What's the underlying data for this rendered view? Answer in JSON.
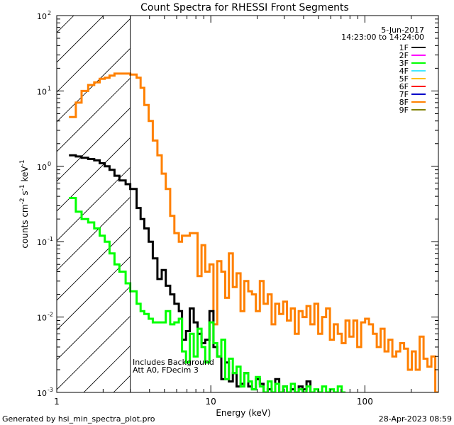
{
  "chart_data": {
    "type": "line",
    "title": "Count Spectra for RHESSI Front Segments",
    "xlabel": "Energy (keV)",
    "ylabel_prefix": "counts cm",
    "ylabel_exps": [
      "-2",
      "-1",
      "-1"
    ],
    "ylabel_parts": [
      " s",
      " keV"
    ],
    "x_scale": "log",
    "y_scale": "log",
    "xlim": [
      1.0,
      300.0
    ],
    "ylim": [
      0.001,
      100.0
    ],
    "x_ticks": [
      {
        "value": 1,
        "label": "1"
      },
      {
        "value": 10,
        "label": "10"
      },
      {
        "value": 100,
        "label": "100"
      }
    ],
    "y_ticks": [
      {
        "value": 0.001,
        "base": "10",
        "exp": "-3"
      },
      {
        "value": 0.01,
        "base": "10",
        "exp": "-2"
      },
      {
        "value": 0.1,
        "base": "10",
        "exp": "-1"
      },
      {
        "value": 1,
        "base": "10",
        "exp": "0"
      },
      {
        "value": 10,
        "base": "10",
        "exp": "1"
      },
      {
        "value": 100,
        "base": "10",
        "exp": "2"
      }
    ],
    "date_label": "5-Jun-2017",
    "time_label": "14:23:00 to 14:24:00",
    "attenuator_cutoff_kev": 3.0,
    "annotations": [
      "Includes Background",
      "Att A0, FDecim 3"
    ],
    "footer_left": "Generated by hsi_min_spectra_plot.pro",
    "footer_right": "28-Apr-2023 08:59",
    "legend": [
      {
        "name": "1F",
        "color": "#000000"
      },
      {
        "name": "2F",
        "color": "#ff00ff"
      },
      {
        "name": "3F",
        "color": "#00ff00"
      },
      {
        "name": "4F",
        "color": "#44e8ff"
      },
      {
        "name": "5F",
        "color": "#ffc000"
      },
      {
        "name": "6F",
        "color": "#ff0000"
      },
      {
        "name": "7F",
        "color": "#0000c8"
      },
      {
        "name": "8F",
        "color": "#ff8000"
      },
      {
        "name": "9F",
        "color": "#808000"
      }
    ],
    "series": [
      {
        "name": "8F",
        "color": "#ff8000",
        "edges": [
          1.2,
          1.33,
          1.45,
          1.6,
          1.75,
          1.9,
          2.05,
          2.2,
          2.37,
          2.55,
          2.8,
          3.0,
          3.3,
          3.5,
          3.7,
          3.95,
          4.2,
          4.5,
          4.8,
          5.1,
          5.45,
          5.8,
          6.2,
          6.5,
          6.9,
          7.3,
          7.75,
          8.2,
          8.7,
          9.2,
          9.8,
          10.4,
          11.0,
          11.7,
          12.4,
          13.1,
          13.9,
          14.7,
          15.6,
          16.5,
          17.5,
          18.5,
          19.6,
          20.8,
          22.0,
          23.4,
          24.8,
          26.2,
          27.8,
          29.5,
          31.2,
          33.1,
          35.1,
          37.2,
          39.4,
          41.8,
          44.3,
          47.0,
          49.8,
          52.8,
          56.0,
          59.3,
          62.9,
          66.7,
          70.7,
          74.9,
          79.4,
          84.2,
          89.2,
          94.6,
          100.3,
          106.3,
          112.7,
          119.4,
          126.6,
          134.2,
          142.2,
          150.8,
          159.8,
          169.4,
          179.6,
          190.3,
          201.8,
          213.9,
          226.7,
          240.3,
          254.7,
          270.0,
          286.2,
          300.0
        ],
        "values": [
          4.5,
          7.0,
          10.0,
          12.0,
          13.0,
          14.5,
          15.0,
          16.0,
          17.0,
          17.0,
          17.0,
          16.5,
          15.0,
          11.0,
          6.5,
          4.0,
          2.2,
          1.4,
          0.8,
          0.5,
          0.22,
          0.13,
          0.1,
          0.12,
          0.12,
          0.13,
          0.13,
          0.035,
          0.09,
          0.04,
          0.05,
          0.008,
          0.055,
          0.04,
          0.018,
          0.07,
          0.025,
          0.038,
          0.012,
          0.03,
          0.022,
          0.02,
          0.012,
          0.03,
          0.015,
          0.02,
          0.008,
          0.015,
          0.011,
          0.016,
          0.009,
          0.013,
          0.006,
          0.012,
          0.01,
          0.014,
          0.008,
          0.015,
          0.006,
          0.01,
          0.013,
          0.005,
          0.008,
          0.006,
          0.0045,
          0.009,
          0.0055,
          0.009,
          0.004,
          0.0085,
          0.0095,
          0.008,
          0.006,
          0.004,
          0.007,
          0.0035,
          0.005,
          0.003,
          0.0035,
          0.0045,
          0.0038,
          0.002,
          0.0035,
          0.002,
          0.0055,
          0.0028,
          0.0022,
          0.003,
          0.001
        ]
      },
      {
        "name": "1F",
        "color": "#000000",
        "edges": [
          1.2,
          1.33,
          1.45,
          1.6,
          1.75,
          1.9,
          2.05,
          2.2,
          2.37,
          2.55,
          2.8,
          3.0,
          3.3,
          3.5,
          3.7,
          3.95,
          4.2,
          4.5,
          4.8,
          5.1,
          5.45,
          5.8,
          6.2,
          6.5,
          6.9,
          7.3,
          7.75,
          8.2,
          8.7,
          9.2,
          9.8,
          10.4,
          11.0,
          11.7,
          12.4,
          13.1,
          13.9,
          14.7,
          15.6,
          16.5,
          17.5,
          18.5,
          19.6,
          20.8,
          22.0,
          23.4,
          24.8,
          26.2,
          27.8,
          29.5,
          31.2,
          33.1,
          35.1,
          37.2,
          39.4,
          41.8,
          44.3,
          47.0
        ],
        "values": [
          1.4,
          1.35,
          1.3,
          1.25,
          1.2,
          1.1,
          1.0,
          0.9,
          0.75,
          0.65,
          0.58,
          0.5,
          0.28,
          0.2,
          0.15,
          0.1,
          0.06,
          0.032,
          0.042,
          0.026,
          0.02,
          0.015,
          0.012,
          0.005,
          0.0065,
          0.013,
          0.0085,
          0.006,
          0.0045,
          0.005,
          0.012,
          0.004,
          0.003,
          0.0015,
          0.0025,
          0.0014,
          0.0018,
          0.0012,
          0.0013,
          0.0018,
          0.0012,
          0.0011,
          0.0015,
          0.0013,
          0.001,
          0.0011,
          0.001,
          0.0015,
          0.001,
          0.0012,
          0.001,
          0.0011,
          0.001,
          0.0012,
          0.0011,
          0.0014,
          0.001
        ]
      },
      {
        "name": "3F",
        "color": "#00ff00",
        "edges": [
          1.2,
          1.33,
          1.45,
          1.6,
          1.75,
          1.9,
          2.05,
          2.2,
          2.37,
          2.55,
          2.8,
          3.0,
          3.3,
          3.5,
          3.7,
          3.95,
          4.2,
          4.5,
          4.8,
          5.1,
          5.45,
          5.8,
          6.2,
          6.5,
          6.9,
          7.3,
          7.75,
          8.2,
          8.7,
          9.2,
          9.8,
          10.4,
          11.0,
          11.7,
          12.4,
          13.1,
          13.9,
          14.7,
          15.6,
          16.5,
          17.5,
          18.5,
          19.6,
          20.8,
          22.0,
          23.4,
          24.8,
          26.2,
          27.8,
          29.5,
          31.2,
          33.1,
          35.1,
          37.2,
          39.4,
          41.8,
          44.3,
          47.0,
          49.8,
          52.8,
          56.0,
          59.3,
          62.9,
          66.7,
          70.7,
          74.9
        ],
        "values": [
          0.38,
          0.25,
          0.2,
          0.18,
          0.15,
          0.12,
          0.1,
          0.07,
          0.05,
          0.04,
          0.028,
          0.022,
          0.015,
          0.012,
          0.011,
          0.0095,
          0.0085,
          0.0085,
          0.0085,
          0.012,
          0.008,
          0.0085,
          0.0095,
          0.0035,
          0.0025,
          0.006,
          0.003,
          0.007,
          0.004,
          0.0025,
          0.0085,
          0.0045,
          0.003,
          0.005,
          0.0015,
          0.0028,
          0.0018,
          0.0022,
          0.0012,
          0.0018,
          0.0014,
          0.0011,
          0.0016,
          0.0012,
          0.001,
          0.0014,
          0.001,
          0.0013,
          0.001,
          0.0012,
          0.001,
          0.0013,
          0.001,
          0.0011,
          0.001,
          0.0012,
          0.001,
          0.0011,
          0.001,
          0.0012,
          0.001,
          0.0011,
          0.001,
          0.0012,
          0.001
        ]
      }
    ]
  }
}
